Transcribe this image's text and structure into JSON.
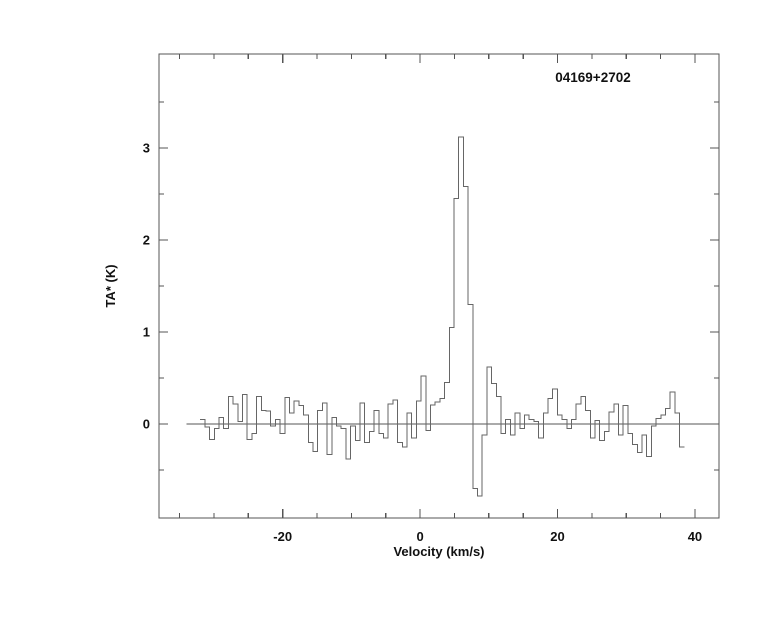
{
  "figure": {
    "background": "#ffffff"
  },
  "chart_data": {
    "type": "line",
    "subtype": "histogram-step-spectrum",
    "title": "04169+2702",
    "xlabel": "Velocity (km/s)",
    "ylabel": "TA* (K)",
    "xlim": [
      -38,
      43.5
    ],
    "ylim": [
      -1.02,
      4.02
    ],
    "grid": false,
    "legend": "none",
    "x_major_ticks": [
      -20,
      0,
      20,
      40
    ],
    "x_tick_labels": [
      "-20",
      "0",
      "20",
      "40"
    ],
    "x_minor_step": 5,
    "x_minor_range": [
      -35,
      40
    ],
    "y_major_ticks": [
      0,
      1,
      2,
      3
    ],
    "y_tick_labels": [
      "0",
      "1",
      "2",
      "3"
    ],
    "y_minor_step": 0.5,
    "y_minor_range": [
      -0.5,
      3.5
    ],
    "baseline": {
      "y": 0,
      "x_from": -34,
      "x_to": 42.5
    },
    "v_start": -32.0,
    "dv": 0.684,
    "values": [
      0.05,
      -0.03,
      -0.17,
      -0.05,
      0.07,
      -0.05,
      0.3,
      0.22,
      0.03,
      0.32,
      -0.17,
      -0.1,
      0.3,
      0.15,
      0.14,
      -0.02,
      0.05,
      -0.1,
      0.29,
      0.12,
      0.25,
      0.2,
      0.1,
      -0.2,
      -0.3,
      0.15,
      0.23,
      -0.33,
      0.07,
      -0.02,
      -0.05,
      -0.38,
      -0.02,
      -0.18,
      0.23,
      -0.2,
      -0.08,
      0.15,
      -0.1,
      -0.15,
      0.22,
      0.26,
      -0.2,
      -0.25,
      0.12,
      -0.15,
      0.25,
      0.52,
      -0.07,
      0.21,
      0.24,
      0.28,
      0.45,
      1.05,
      2.45,
      3.12,
      2.58,
      1.3,
      -0.7,
      -0.78,
      -0.12,
      0.62,
      0.44,
      0.3,
      -0.1,
      0.05,
      -0.12,
      0.12,
      -0.05,
      0.1,
      0.05,
      0.03,
      -0.15,
      0.12,
      0.28,
      0.38,
      0.1,
      0.05,
      -0.05,
      0.05,
      0.22,
      0.3,
      0.15,
      -0.15,
      0.04,
      -0.18,
      -0.08,
      0.13,
      0.22,
      -0.12,
      0.2,
      -0.1,
      -0.22,
      -0.31,
      -0.12,
      -0.35,
      -0.02,
      0.06,
      0.1,
      0.17,
      0.35,
      0.12,
      -0.25
    ],
    "colors": {
      "trace": "#666666",
      "frame": "#555555",
      "baseline": "#555555",
      "text": "#111111"
    }
  }
}
